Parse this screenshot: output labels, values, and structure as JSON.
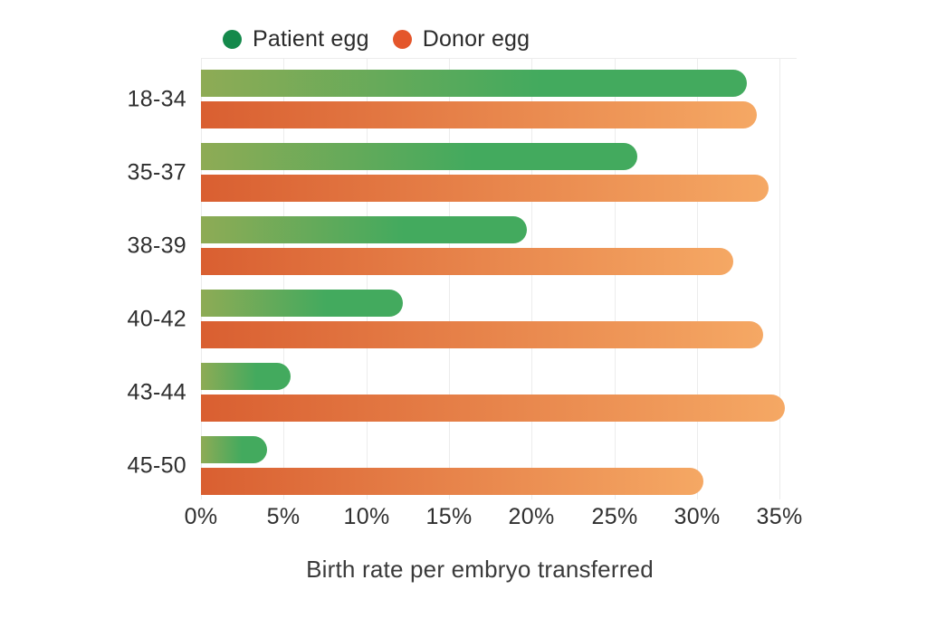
{
  "legend": [
    {
      "label": "Patient egg",
      "color": "#14894b"
    },
    {
      "label": "Donor egg",
      "color": "#e4562b"
    }
  ],
  "chart_data": {
    "type": "bar",
    "orientation": "horizontal",
    "title": "",
    "xlabel": "Birth rate per embryo transferred",
    "ylabel": "",
    "categories": [
      "18-34",
      "35-37",
      "38-39",
      "40-42",
      "43-44",
      "45-50"
    ],
    "series": [
      {
        "name": "Patient egg",
        "values": [
          33.0,
          26.4,
          19.7,
          12.2,
          5.4,
          4.0
        ],
        "color_start": "#8eab55",
        "color_end": "#43aa5e",
        "gradient_end_stop_pct": 62,
        "legend_dot": "#14894b"
      },
      {
        "name": "Donor egg",
        "values": [
          33.6,
          34.3,
          32.2,
          34.0,
          35.3,
          30.4
        ],
        "color_start": "#d95f31",
        "color_end": "#f5a864",
        "gradient_end_stop_pct": 100,
        "legend_dot": "#e4562b"
      }
    ],
    "x_ticks": [
      "0%",
      "5%",
      "10%",
      "15%",
      "20%",
      "25%",
      "30%",
      "35%"
    ],
    "x_tick_values": [
      0,
      5,
      10,
      15,
      20,
      25,
      30,
      35
    ],
    "xlim": [
      0,
      36
    ],
    "grid": true,
    "legend_position": "top-left"
  }
}
